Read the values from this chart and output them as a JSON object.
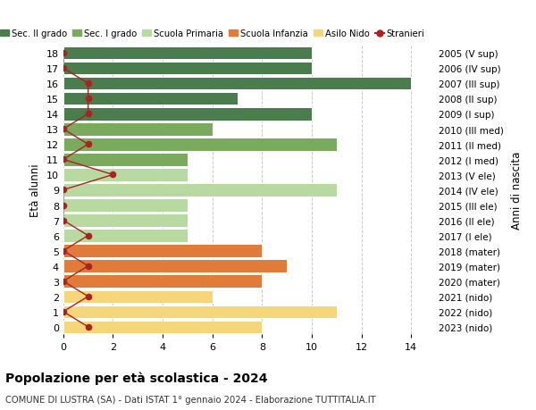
{
  "ages": [
    18,
    17,
    16,
    15,
    14,
    13,
    12,
    11,
    10,
    9,
    8,
    7,
    6,
    5,
    4,
    3,
    2,
    1,
    0
  ],
  "years": [
    "2005 (V sup)",
    "2006 (IV sup)",
    "2007 (III sup)",
    "2008 (II sup)",
    "2009 (I sup)",
    "2010 (III med)",
    "2011 (II med)",
    "2012 (I med)",
    "2013 (V ele)",
    "2014 (IV ele)",
    "2015 (III ele)",
    "2016 (II ele)",
    "2017 (I ele)",
    "2018 (mater)",
    "2019 (mater)",
    "2020 (mater)",
    "2021 (nido)",
    "2022 (nido)",
    "2023 (nido)"
  ],
  "bar_values": [
    10,
    10,
    14,
    7,
    10,
    6,
    11,
    5,
    5,
    11,
    5,
    5,
    5,
    8,
    9,
    8,
    6,
    11,
    8
  ],
  "bar_colors": [
    "#4a7c4e",
    "#4a7c4e",
    "#4a7c4e",
    "#4a7c4e",
    "#4a7c4e",
    "#7aaa5e",
    "#7aaa5e",
    "#7aaa5e",
    "#b8d9a0",
    "#b8d9a0",
    "#b8d9a0",
    "#b8d9a0",
    "#b8d9a0",
    "#e07b39",
    "#e07b39",
    "#e07b39",
    "#f5d67a",
    "#f5d67a",
    "#f5d67a"
  ],
  "stranieri_values": [
    0,
    0,
    1,
    1,
    1,
    0,
    1,
    0,
    2,
    0,
    0,
    0,
    1,
    0,
    1,
    0,
    1,
    0,
    1
  ],
  "title": "Popolazione per età scolastica - 2024",
  "subtitle": "COMUNE DI LUSTRA (SA) - Dati ISTAT 1° gennaio 2024 - Elaborazione TUTTITALIA.IT",
  "ylabel_left": "Età alunni",
  "ylabel_right": "Anni di nascita",
  "xlim": [
    0,
    15
  ],
  "xticks": [
    0,
    2,
    4,
    6,
    8,
    10,
    12,
    14
  ],
  "legend_labels": [
    "Sec. II grado",
    "Sec. I grado",
    "Scuola Primaria",
    "Scuola Infanzia",
    "Asilo Nido",
    "Stranieri"
  ],
  "legend_colors": [
    "#4a7c4e",
    "#7aaa5e",
    "#b8d9a0",
    "#e07b39",
    "#f5d67a",
    "#cc2222"
  ],
  "color_stranieri": "#aa2222",
  "bar_height": 0.85,
  "bg_color": "#ffffff",
  "grid_color": "#cccccc"
}
